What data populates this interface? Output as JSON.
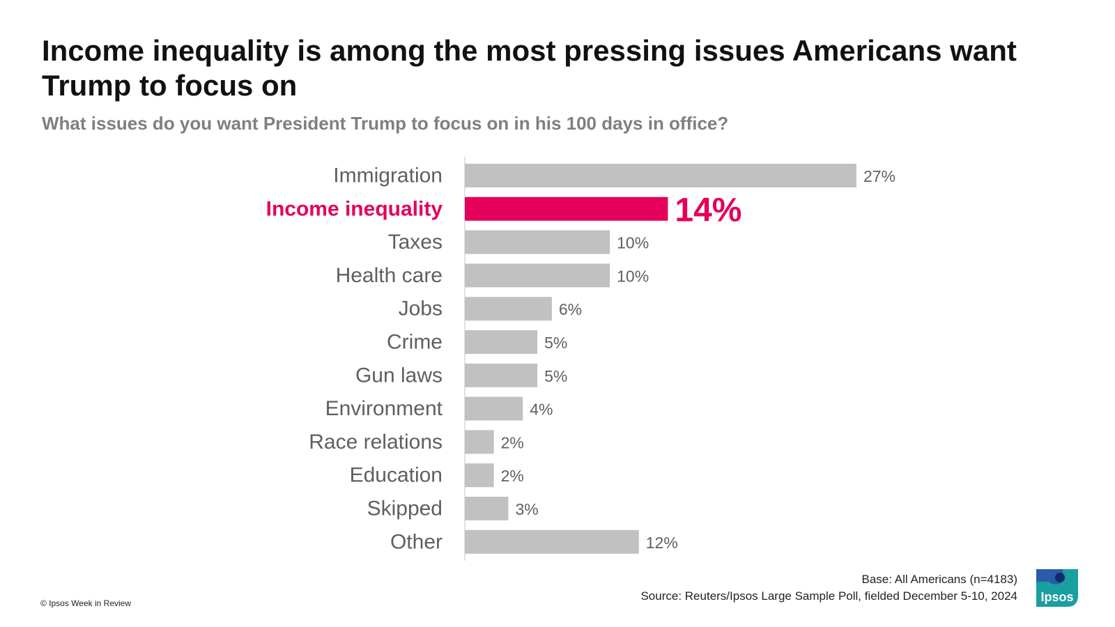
{
  "title": "Income inequality is among the most pressing issues Americans want Trump to focus on",
  "subtitle": "What issues do you want President Trump to focus on in his 100 days in office?",
  "footer": {
    "base": "Base: All Americans (n=4183)",
    "source": "Source: Reuters/Ipsos Large Sample Poll, fielded December 5-10, 2024",
    "copyright": "© Ipsos Week in Review"
  },
  "logo": {
    "text": "Ipsos",
    "color": "#1a9fa0",
    "accent": "#2a5caa"
  },
  "colors": {
    "bar": "#c1c1c1",
    "highlight": "#e4005b",
    "label": "#5f5f5f"
  },
  "chart_data": {
    "type": "bar",
    "orientation": "horizontal",
    "categories": [
      "Immigration",
      "Income inequality",
      "Taxes",
      "Health care",
      "Jobs",
      "Crime",
      "Gun laws",
      "Environment",
      "Race relations",
      "Education",
      "Skipped",
      "Other"
    ],
    "values": [
      27,
      14,
      10,
      10,
      6,
      5,
      5,
      4,
      2,
      2,
      3,
      12
    ],
    "value_labels": [
      "27%",
      "14%",
      "10%",
      "10%",
      "6%",
      "5%",
      "5%",
      "4%",
      "2%",
      "2%",
      "3%",
      "12%"
    ],
    "highlight_index": 1,
    "unit": "%",
    "xlim": [
      0,
      27
    ],
    "grid": false,
    "legend": "none"
  }
}
